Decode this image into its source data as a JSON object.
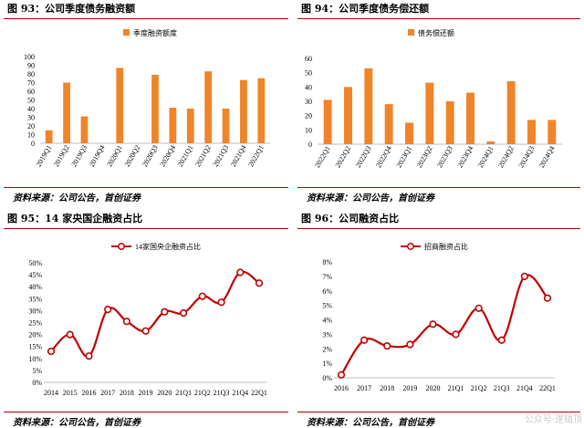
{
  "source_text": "资料来源：公司公告，首创证券",
  "watermark": "公众号·逻辑顶",
  "colors": {
    "bar": "#F08429",
    "line": "#C00000",
    "marker_fill": "#ffffff",
    "rule": "#B00000"
  },
  "panels": [
    {
      "title": "图 93：公司季度债务融资额"
    },
    {
      "title": "图 94：公司季度债务偿还额"
    },
    {
      "title": "图 95：14 家央国企融资占比"
    },
    {
      "title": "图 96：公司融资占比"
    }
  ],
  "chart_data": [
    {
      "type": "bar",
      "title": "图 93：公司季度债务融资额",
      "legend": "季度融资额度",
      "legend_position": "top-center",
      "categories": [
        "2019Q1",
        "2019Q2",
        "2019Q3",
        "2019Q4",
        "2020Q1",
        "2020Q2",
        "2020Q3",
        "2020Q4",
        "2021Q1",
        "2021Q2",
        "2021Q3",
        "2021Q4",
        "2022Q1"
      ],
      "values": [
        15,
        70,
        31,
        0,
        87,
        0,
        79,
        41,
        40,
        83,
        40,
        73,
        75
      ],
      "ylim": [
        0,
        100
      ],
      "yticks": [
        0,
        10,
        20,
        30,
        40,
        50,
        60,
        70,
        80,
        90,
        100
      ],
      "grid": false
    },
    {
      "type": "bar",
      "title": "图 94：公司季度债务偿还额",
      "legend": "债务偿还额",
      "legend_position": "top-center",
      "categories": [
        "2022Q1",
        "2022Q2",
        "2022Q3",
        "2022Q4",
        "2023Q1",
        "2023Q2",
        "2023Q3",
        "2023Q4",
        "2024Q1",
        "2024Q2",
        "2024Q3",
        "2024Q4"
      ],
      "values": [
        31,
        40,
        53,
        28,
        15,
        43,
        30,
        36,
        2,
        44,
        17,
        17
      ],
      "ylim": [
        0,
        60
      ],
      "yticks": [
        0,
        10,
        20,
        30,
        40,
        50,
        60
      ],
      "grid": false
    },
    {
      "type": "line",
      "title": "图 95：14 家央国企融资占比",
      "legend": "14家国央企融资占比",
      "legend_position": "top-center",
      "categories": [
        "2014",
        "2015",
        "2016",
        "2017",
        "2018",
        "2019",
        "2020",
        "21Q1",
        "21Q2",
        "21Q3",
        "21Q4",
        "22Q1"
      ],
      "values": [
        13,
        20,
        11,
        30.5,
        25.5,
        21.5,
        29.5,
        29,
        36,
        33.5,
        46,
        41.5
      ],
      "ylim": [
        0,
        50
      ],
      "yticks": [
        "0%",
        "5%",
        "10%",
        "15%",
        "20%",
        "25%",
        "30%",
        "35%",
        "40%",
        "45%",
        "50%"
      ],
      "grid": false
    },
    {
      "type": "line",
      "title": "图 96：公司融资占比",
      "legend": "招商融资占比",
      "legend_position": "top-center",
      "categories": [
        "2016",
        "2017",
        "2018",
        "2019",
        "2020",
        "21Q1",
        "21Q2",
        "21Q3",
        "21Q4",
        "22Q1"
      ],
      "values": [
        0.2,
        2.6,
        2.2,
        2.3,
        3.7,
        3.0,
        4.8,
        2.6,
        7.0,
        5.5
      ],
      "ylim": [
        0,
        8
      ],
      "yticks": [
        "0%",
        "1%",
        "2%",
        "3%",
        "4%",
        "5%",
        "6%",
        "7%",
        "8%"
      ],
      "grid": false
    }
  ]
}
